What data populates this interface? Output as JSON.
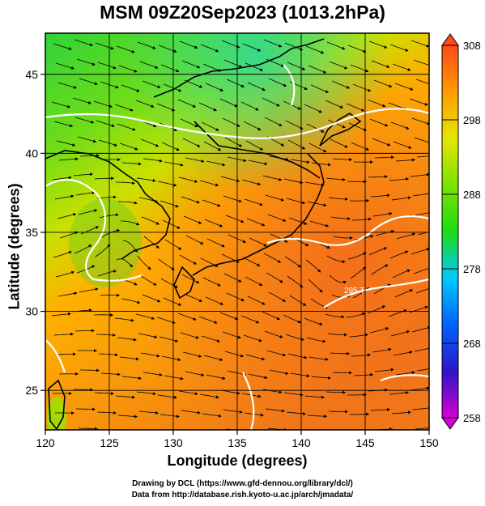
{
  "title": "MSM 09Z20Sep2023 (1013.2hPa)",
  "x_axis": {
    "label": "Longitude (degrees)",
    "ticks": [
      "120",
      "125",
      "130",
      "135",
      "140",
      "145",
      "150"
    ],
    "range": [
      120,
      150
    ]
  },
  "y_axis": {
    "label": "Latitude  (degrees)",
    "ticks": [
      "25",
      "30",
      "35",
      "40",
      "45"
    ],
    "range": [
      22.5,
      47.6
    ]
  },
  "colorbar": {
    "ticks": [
      "308",
      "298",
      "288",
      "278",
      "268",
      "258"
    ],
    "range": [
      258,
      308
    ],
    "colors": [
      "#d400d4",
      "#2d16c8",
      "#0063ff",
      "#00c8ff",
      "#1fdc14",
      "#7de100",
      "#e6e600",
      "#ff9b00",
      "#ff4a1a"
    ]
  },
  "map": {
    "field": "temperature (K) with streamlines",
    "contour_labels": [
      "295 T"
    ],
    "land_color": "#000000",
    "contour_color": "#ffffff",
    "streamline_color": "#000000"
  },
  "credits": {
    "line1": "Drawing by DCL (https://www.gfd-dennou.org/library/dcl/)",
    "line2": "Data from http://database.rish.kyoto-u.ac.jp/arch/jmadata/"
  }
}
